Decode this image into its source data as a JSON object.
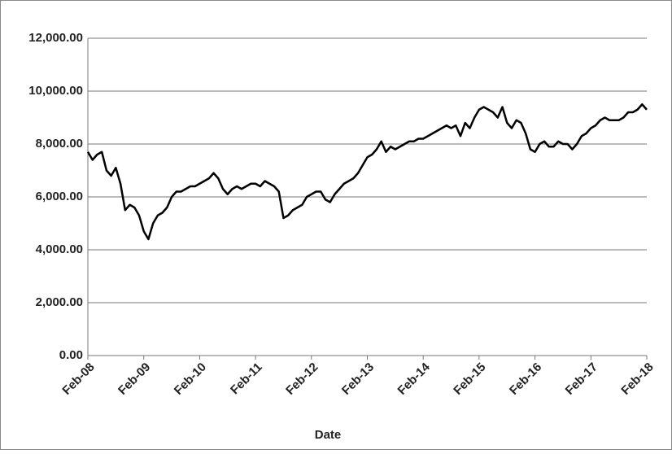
{
  "chart_data": {
    "type": "line",
    "x_label": "Date",
    "color": "#000000",
    "grid": true,
    "ylim": [
      0,
      12000
    ],
    "yticks": [
      {
        "value": 0,
        "label": "0.00"
      },
      {
        "value": 2000,
        "label": "2,000.00"
      },
      {
        "value": 4000,
        "label": "4,000.00"
      },
      {
        "value": 6000,
        "label": "6,000.00"
      },
      {
        "value": 8000,
        "label": "8,000.00"
      },
      {
        "value": 10000,
        "label": "10,000.00"
      },
      {
        "value": 12000,
        "label": "12,000.00"
      }
    ],
    "x": [
      "Feb-08",
      "Mar-08",
      "Apr-08",
      "May-08",
      "Jun-08",
      "Jul-08",
      "Aug-08",
      "Sep-08",
      "Oct-08",
      "Nov-08",
      "Dec-08",
      "Jan-09",
      "Feb-09",
      "Mar-09",
      "Apr-09",
      "May-09",
      "Jun-09",
      "Jul-09",
      "Aug-09",
      "Sep-09",
      "Oct-09",
      "Nov-09",
      "Dec-09",
      "Jan-10",
      "Feb-10",
      "Mar-10",
      "Apr-10",
      "May-10",
      "Jun-10",
      "Jul-10",
      "Aug-10",
      "Sep-10",
      "Oct-10",
      "Nov-10",
      "Dec-10",
      "Jan-11",
      "Feb-11",
      "Mar-11",
      "Apr-11",
      "May-11",
      "Jun-11",
      "Jul-11",
      "Aug-11",
      "Sep-11",
      "Oct-11",
      "Nov-11",
      "Dec-11",
      "Jan-12",
      "Feb-12",
      "Mar-12",
      "Apr-12",
      "May-12",
      "Jun-12",
      "Jul-12",
      "Aug-12",
      "Sep-12",
      "Oct-12",
      "Nov-12",
      "Dec-12",
      "Jan-13",
      "Feb-13",
      "Mar-13",
      "Apr-13",
      "May-13",
      "Jun-13",
      "Jul-13",
      "Aug-13",
      "Sep-13",
      "Oct-13",
      "Nov-13",
      "Dec-13",
      "Jan-14",
      "Feb-14",
      "Mar-14",
      "Apr-14",
      "May-14",
      "Jun-14",
      "Jul-14",
      "Aug-14",
      "Sep-14",
      "Oct-14",
      "Nov-14",
      "Dec-14",
      "Jan-15",
      "Feb-15",
      "Mar-15",
      "Apr-15",
      "May-15",
      "Jun-15",
      "Jul-15",
      "Aug-15",
      "Sep-15",
      "Oct-15",
      "Nov-15",
      "Dec-15",
      "Jan-16",
      "Feb-16",
      "Mar-16",
      "Apr-16",
      "May-16",
      "Jun-16",
      "Jul-16",
      "Aug-16",
      "Sep-16",
      "Oct-16",
      "Nov-16",
      "Dec-16",
      "Jan-17",
      "Feb-17",
      "Mar-17",
      "Apr-17",
      "May-17",
      "Jun-17",
      "Jul-17",
      "Aug-17",
      "Sep-17",
      "Oct-17",
      "Nov-17",
      "Dec-17",
      "Jan-18",
      "Feb-18"
    ],
    "values": [
      7700,
      7400,
      7600,
      7700,
      7000,
      6800,
      7100,
      6500,
      5500,
      5700,
      5600,
      5300,
      4700,
      4400,
      5000,
      5300,
      5400,
      5600,
      6000,
      6200,
      6200,
      6300,
      6400,
      6400,
      6500,
      6600,
      6700,
      6900,
      6700,
      6300,
      6100,
      6300,
      6400,
      6300,
      6400,
      6500,
      6500,
      6400,
      6600,
      6500,
      6400,
      6200,
      5200,
      5300,
      5500,
      5600,
      5700,
      6000,
      6100,
      6200,
      6200,
      5900,
      5800,
      6100,
      6300,
      6500,
      6600,
      6700,
      6900,
      7200,
      7500,
      7600,
      7800,
      8100,
      7700,
      7900,
      7800,
      7900,
      8000,
      8100,
      8100,
      8200,
      8200,
      8300,
      8400,
      8500,
      8600,
      8700,
      8600,
      8700,
      8300,
      8800,
      8600,
      9000,
      9300,
      9400,
      9300,
      9200,
      9000,
      9400,
      8800,
      8600,
      8900,
      8800,
      8400,
      7800,
      7700,
      8000,
      8100,
      7900,
      7900,
      8100,
      8000,
      8000,
      7800,
      8000,
      8300,
      8400,
      8600,
      8700,
      8900,
      9000,
      8900,
      8900,
      8900,
      9000,
      9200,
      9200,
      9300,
      9500,
      9300
    ]
  }
}
